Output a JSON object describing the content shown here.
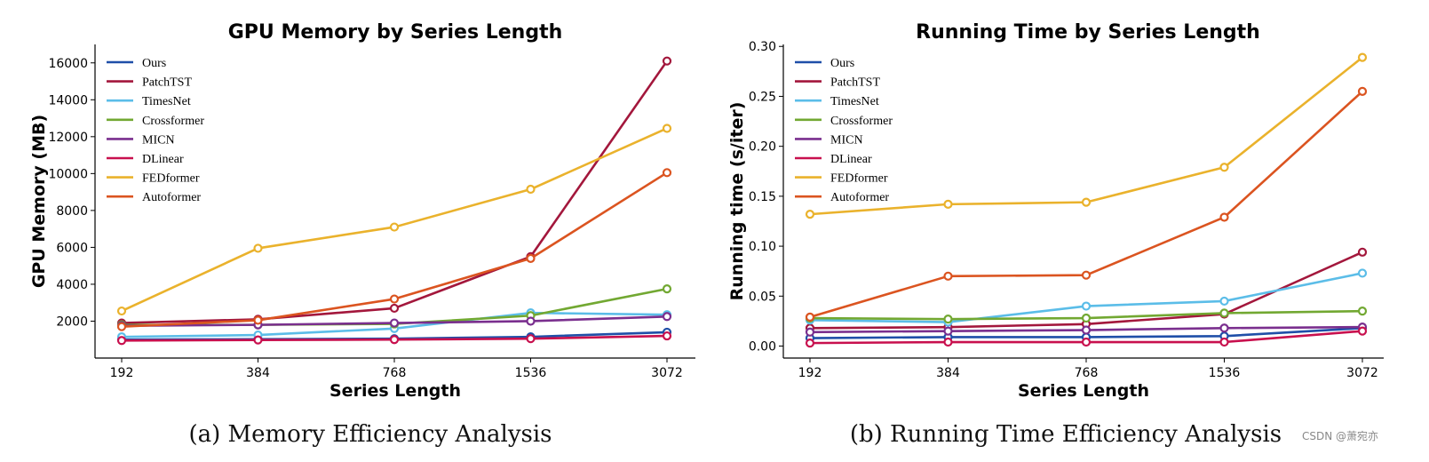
{
  "chart_data": [
    {
      "type": "line",
      "title": "GPU Memory by Series Length",
      "xlabel": "Series Length",
      "ylabel": "GPU Memory (MB)",
      "categories": [
        "192",
        "384",
        "768",
        "1536",
        "3072"
      ],
      "ylim": [
        0,
        17000
      ],
      "yticks": [
        "2000",
        "4000",
        "6000",
        "8000",
        "10000",
        "12000",
        "14000",
        "16000"
      ],
      "legend_position": "top-left",
      "series": [
        {
          "name": "Ours",
          "color": "#1f4fa8",
          "values": [
            1000,
            1020,
            1050,
            1150,
            1400
          ]
        },
        {
          "name": "PatchTST",
          "color": "#a3173c",
          "values": [
            1900,
            2100,
            2700,
            5500,
            16100
          ]
        },
        {
          "name": "TimesNet",
          "color": "#5bbde8",
          "values": [
            1150,
            1250,
            1600,
            2450,
            2350
          ]
        },
        {
          "name": "Crossformer",
          "color": "#72a832",
          "values": [
            1800,
            1800,
            1850,
            2300,
            3750
          ]
        },
        {
          "name": "MICN",
          "color": "#7a2f8e",
          "values": [
            1750,
            1800,
            1900,
            2000,
            2250
          ]
        },
        {
          "name": "DLinear",
          "color": "#c8104e",
          "values": [
            950,
            980,
            1000,
            1050,
            1200
          ]
        },
        {
          "name": "FEDformer",
          "color": "#eab22c",
          "values": [
            2550,
            5950,
            7100,
            9150,
            12450
          ]
        },
        {
          "name": "Autoformer",
          "color": "#db5420",
          "values": [
            1700,
            2050,
            3200,
            5400,
            10050
          ]
        }
      ],
      "caption": "(a) Memory Efficiency Analysis"
    },
    {
      "type": "line",
      "title": "Running Time by Series Length",
      "xlabel": "Series Length",
      "ylabel": "Running time (s/iter)",
      "categories": [
        "192",
        "384",
        "768",
        "1536",
        "3072"
      ],
      "ylim": [
        -0.012,
        0.302
      ],
      "yticks": [
        "0.00",
        "0.05",
        "0.10",
        "0.15",
        "0.20",
        "0.25",
        "0.30"
      ],
      "legend_position": "top-left",
      "series": [
        {
          "name": "Ours",
          "color": "#1f4fa8",
          "values": [
            0.008,
            0.009,
            0.009,
            0.01,
            0.018
          ]
        },
        {
          "name": "PatchTST",
          "color": "#a3173c",
          "values": [
            0.018,
            0.019,
            0.022,
            0.032,
            0.094
          ]
        },
        {
          "name": "TimesNet",
          "color": "#5bbde8",
          "values": [
            0.026,
            0.024,
            0.04,
            0.045,
            0.073
          ]
        },
        {
          "name": "Crossformer",
          "color": "#72a832",
          "values": [
            0.028,
            0.027,
            0.028,
            0.033,
            0.035
          ]
        },
        {
          "name": "MICN",
          "color": "#7a2f8e",
          "values": [
            0.014,
            0.015,
            0.016,
            0.018,
            0.019
          ]
        },
        {
          "name": "DLinear",
          "color": "#c8104e",
          "values": [
            0.003,
            0.004,
            0.004,
            0.004,
            0.015
          ]
        },
        {
          "name": "FEDformer",
          "color": "#eab22c",
          "values": [
            0.132,
            0.142,
            0.144,
            0.179,
            0.289
          ]
        },
        {
          "name": "Autoformer",
          "color": "#db5420",
          "values": [
            0.029,
            0.07,
            0.071,
            0.129,
            0.255
          ]
        }
      ],
      "caption": "(b) Running Time Efficiency Analysis"
    }
  ],
  "watermark": "CSDN @萧宛亦"
}
